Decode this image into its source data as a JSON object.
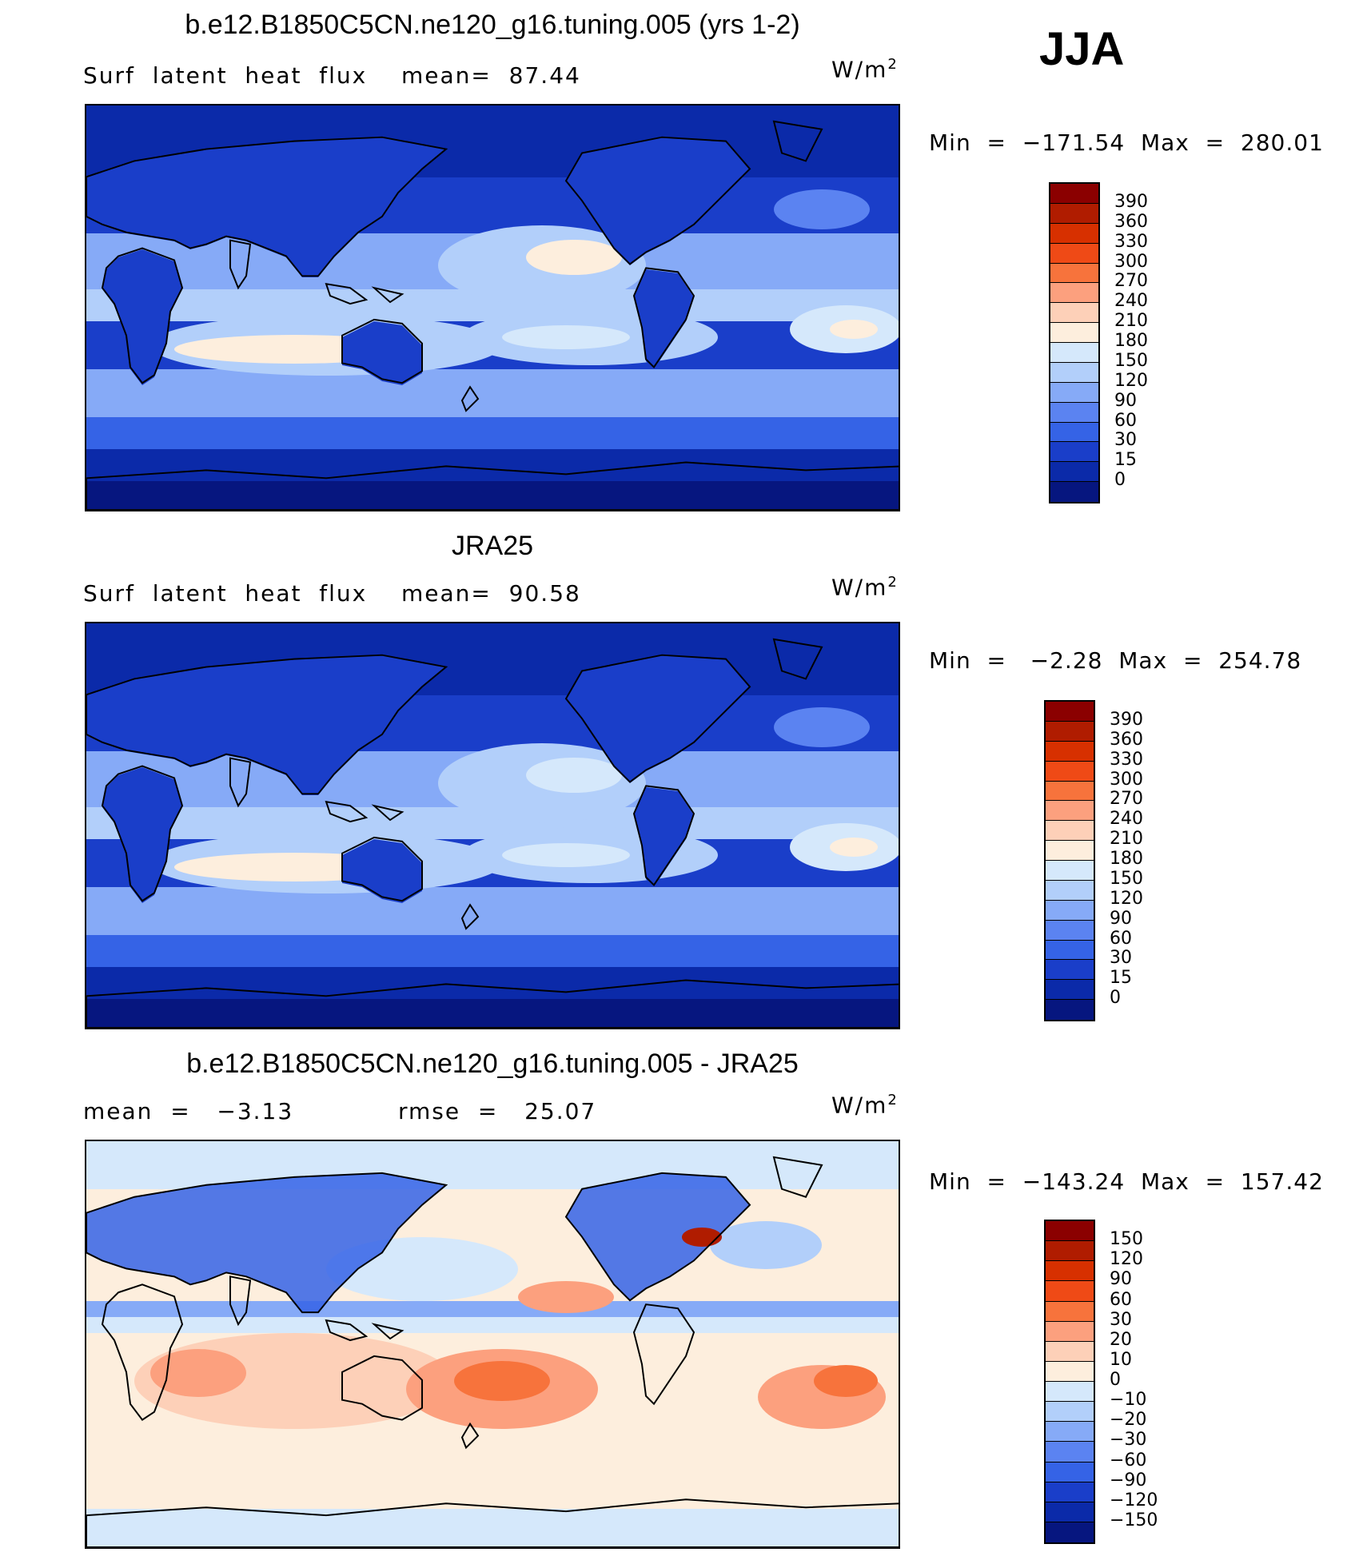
{
  "season": "JJA",
  "panels": [
    {
      "id": "model",
      "title": "b.e12.B1850C5CN.ne120_g16.tuning.005 (yrs 1-2)",
      "left_label": "Surf  latent  heat  flux",
      "stat_label": "mean=  87.44",
      "units": "W/m",
      "units_exp": "2",
      "minmax": "Min  =  −171.54  Max  =  280.01",
      "colorbar": {
        "ticks": [
          "390",
          "360",
          "330",
          "300",
          "270",
          "240",
          "210",
          "180",
          "150",
          "120",
          "90",
          "60",
          "30",
          "15",
          "0"
        ],
        "colors": [
          "#8b0000",
          "#b01c00",
          "#d73000",
          "#ef4a16",
          "#f7733c",
          "#fca07e",
          "#fdd0b8",
          "#fdeedd",
          "#d5e8fb",
          "#b2cffa",
          "#86aaf7",
          "#5b83f1",
          "#3563e6",
          "#1a3ec9",
          "#0b2aa9",
          "#06167f"
        ]
      },
      "pattern": "model"
    },
    {
      "id": "obs",
      "title": "JRA25",
      "left_label": "Surf  latent  heat  flux",
      "stat_label": "mean=  90.58",
      "units": "W/m",
      "units_exp": "2",
      "minmax": "Min  =   −2.28  Max  =  254.78",
      "colorbar": {
        "ticks": [
          "390",
          "360",
          "330",
          "300",
          "270",
          "240",
          "210",
          "180",
          "150",
          "120",
          "90",
          "60",
          "30",
          "15",
          "0"
        ],
        "colors": [
          "#8b0000",
          "#b01c00",
          "#d73000",
          "#ef4a16",
          "#f7733c",
          "#fca07e",
          "#fdd0b8",
          "#fdeedd",
          "#d5e8fb",
          "#b2cffa",
          "#86aaf7",
          "#5b83f1",
          "#3563e6",
          "#1a3ec9",
          "#0b2aa9",
          "#06167f"
        ]
      },
      "pattern": "obs"
    },
    {
      "id": "diff",
      "title": "b.e12.B1850C5CN.ne120_g16.tuning.005 - JRA25",
      "left_label": "mean  =   −3.13",
      "stat_label": "rmse  =   25.07",
      "units": "W/m",
      "units_exp": "2",
      "minmax": "Min  =  −143.24  Max  =  157.42",
      "colorbar": {
        "ticks": [
          "150",
          "120",
          "90",
          "60",
          "30",
          "20",
          "10",
          "0",
          "−10",
          "−20",
          "−30",
          "−60",
          "−90",
          "−120",
          "−150"
        ],
        "colors": [
          "#8b0000",
          "#b01c00",
          "#d73000",
          "#ef4a16",
          "#f7733c",
          "#fca07e",
          "#fdd0b8",
          "#fdeedd",
          "#d5e8fb",
          "#b2cffa",
          "#86aaf7",
          "#5b83f1",
          "#3563e6",
          "#1a3ec9",
          "#0b2aa9",
          "#06167f"
        ]
      },
      "pattern": "diff"
    }
  ]
}
